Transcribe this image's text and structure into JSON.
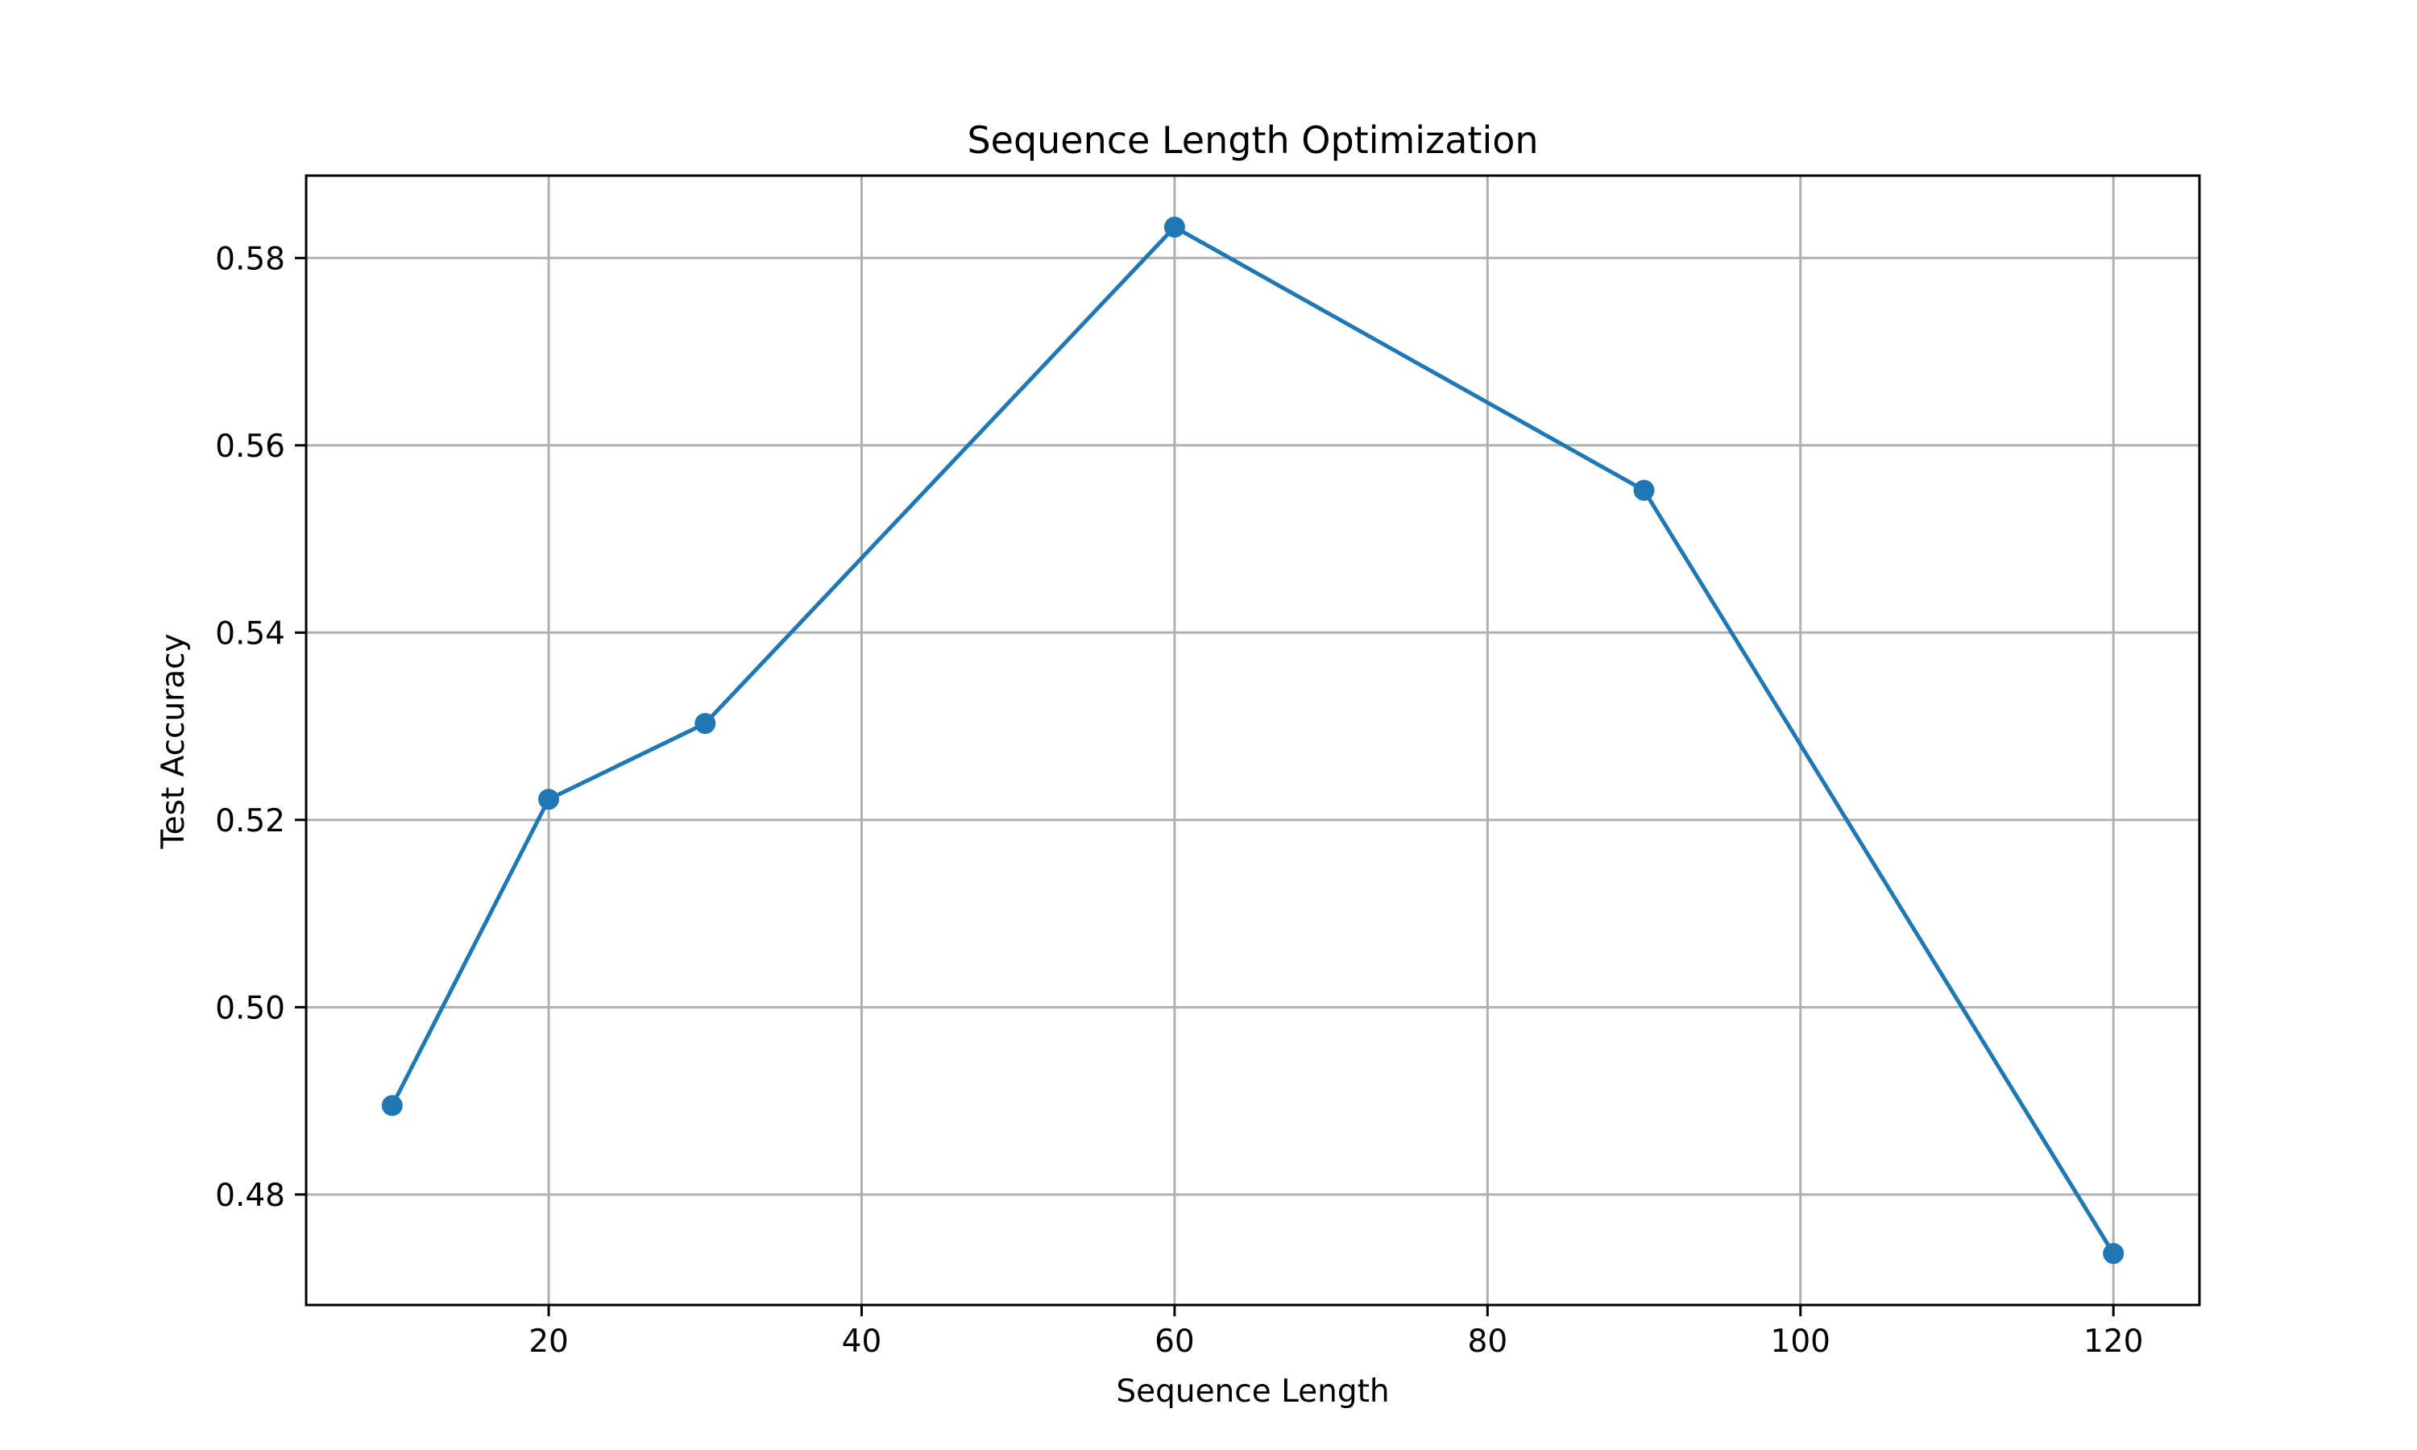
{
  "chart_data": {
    "type": "line",
    "title": "Sequence Length Optimization",
    "xlabel": "Sequence Length",
    "ylabel": "Test Accuracy",
    "xlim": [
      4.5,
      125.5
    ],
    "ylim": [
      0.4682,
      0.5888
    ],
    "xticks": [
      20,
      40,
      60,
      80,
      100,
      120
    ],
    "xtick_labels": [
      "20",
      "40",
      "60",
      "80",
      "100",
      "120"
    ],
    "yticks": [
      0.48,
      0.5,
      0.52,
      0.54,
      0.56,
      0.58
    ],
    "ytick_labels": [
      "0.48",
      "0.50",
      "0.52",
      "0.54",
      "0.56",
      "0.58"
    ],
    "grid": true,
    "series": [
      {
        "color": "#1f77b4",
        "marker": "circle",
        "x": [
          10,
          20,
          30,
          60,
          90,
          120
        ],
        "y": [
          0.4895,
          0.5222,
          0.5303,
          0.5833,
          0.5552,
          0.4737
        ]
      }
    ]
  }
}
